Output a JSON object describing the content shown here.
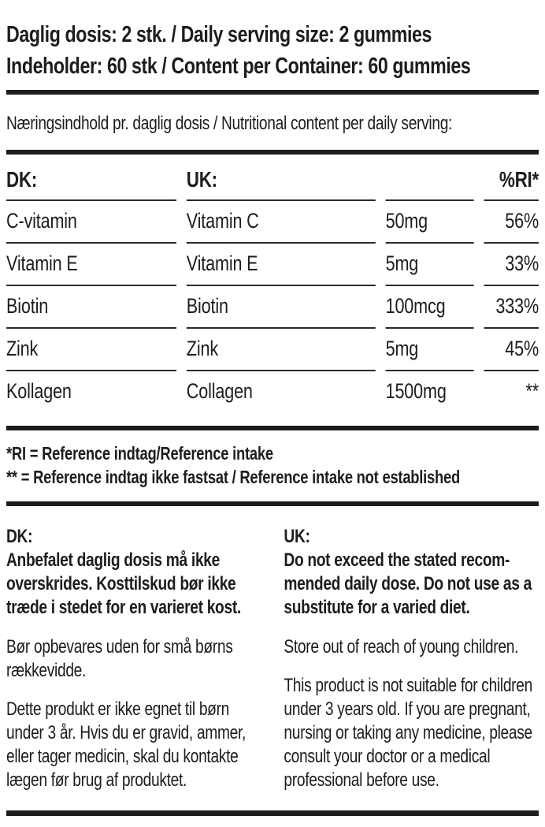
{
  "label": {
    "colors": {
      "text": "#1d1d1b",
      "rule": "#1d1d1b",
      "background": "#ffffff"
    },
    "header": {
      "serving_line": "Daglig dosis: 2 stk. / Daily serving size: 2 gummies",
      "container_line": "Indeholder: 60 stk / Content per Container: 60 gummies"
    },
    "subtitle": "Næringsindhold pr. daglig dosis / Nutritional content per daily serving:",
    "table": {
      "headers": {
        "dk": "DK:",
        "uk": "UK:",
        "amount": "",
        "ri": "%RI*"
      },
      "rows": [
        {
          "dk": "C-vitamin",
          "uk": "Vitamin C",
          "amount": "50mg",
          "ri": "56%"
        },
        {
          "dk": "Vitamin E",
          "uk": "Vitamin E",
          "amount": "5mg",
          "ri": "33%"
        },
        {
          "dk": "Biotin",
          "uk": "Biotin",
          "amount": "100mcg",
          "ri": "333%"
        },
        {
          "dk": "Zink",
          "uk": "Zink",
          "amount": "5mg",
          "ri": "45%"
        },
        {
          "dk": "Kollagen",
          "uk": "Collagen",
          "amount": "1500mg",
          "ri": "**"
        }
      ]
    },
    "footnotes": [
      "*RI = Reference indtag/Reference intake",
      "** = Reference indtag ikke fastsat / Reference intake not established"
    ],
    "dk_section": {
      "heading": "DK:",
      "warning": "Anbefalet daglig dosis må ikke overskrides. Kosttilskud bør ikke træde i stedet for en varieret kost.",
      "paragraphs": [
        "Bør opbevares uden for små børns rækkevidde.",
        "Dette produkt er ikke egnet til børn under 3 år. Hvis du er gravid, ammer, eller tager medicin, skal du kontakte lægen før brug af produktet."
      ]
    },
    "uk_section": {
      "heading": "UK:",
      "warning": "Do not exceed the stated recom­mended daily dose. Do not use as a substitute for a varied diet.",
      "paragraphs": [
        "Store out of reach of young children.",
        "This product is not suitable for children under 3 years old. If you are pregnant, nursing or taking any medicine, please consult your doctor or a medical professional before use."
      ]
    }
  }
}
